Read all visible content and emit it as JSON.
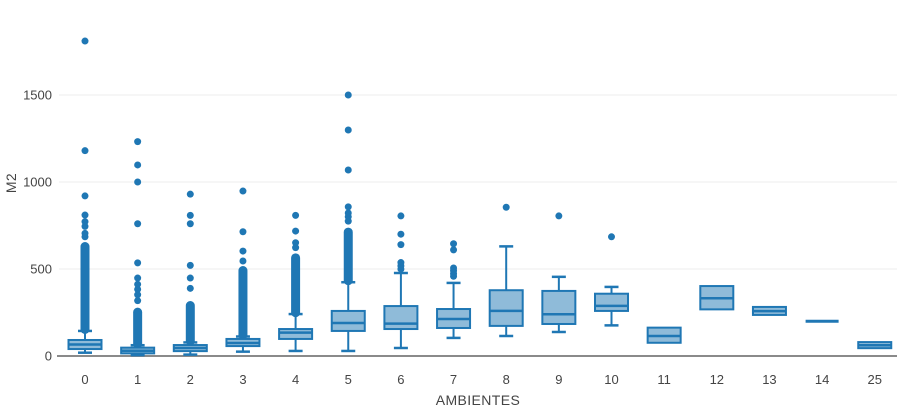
{
  "chart": {
    "xlabel": "AMBIENTES",
    "ylabel": "M2"
  },
  "chart_data": {
    "type": "box",
    "title": "",
    "xlabel": "AMBIENTES",
    "ylabel": "M2",
    "ylim": [
      0,
      1900
    ],
    "yticks": [
      0,
      500,
      1000,
      1500
    ],
    "grid": "horizontal",
    "legend": "none",
    "colors": {
      "box_line": "#1f77b4",
      "box_fill": "#8fbbd9",
      "outlier": "#1f77b4",
      "gridline": "#ececec",
      "axis_line": "#8a8a8a",
      "text": "#444444"
    },
    "categories": [
      "0",
      "1",
      "2",
      "3",
      "4",
      "5",
      "6",
      "7",
      "8",
      "9",
      "10",
      "11",
      "12",
      "13",
      "14",
      "25"
    ],
    "boxes": [
      {
        "label": "0",
        "q1": 40,
        "median": 66,
        "q3": 92,
        "lo": 19,
        "hi": 144,
        "column": [
          150,
          655
        ],
        "outliers": [
          685,
          705,
          745,
          772,
          810,
          920,
          1180,
          1810
        ]
      },
      {
        "label": "1",
        "q1": 15,
        "median": 30,
        "q3": 48,
        "lo": 5,
        "hi": 62,
        "column": [
          65,
          278
        ],
        "outliers": [
          318,
          352,
          383,
          412,
          448,
          535,
          760,
          1000,
          1098,
          1232
        ]
      },
      {
        "label": "2",
        "q1": 28,
        "median": 46,
        "q3": 63,
        "lo": 8,
        "hi": 78,
        "column": [
          82,
          316
        ],
        "outliers": [
          389,
          448,
          521,
          760,
          808,
          930
        ]
      },
      {
        "label": "3",
        "q1": 57,
        "median": 75,
        "q3": 98,
        "lo": 25,
        "hi": 112,
        "column": [
          116,
          517
        ],
        "outliers": [
          546,
          603,
          714,
          948
        ]
      },
      {
        "label": "4",
        "q1": 98,
        "median": 134,
        "q3": 155,
        "lo": 29,
        "hi": 241,
        "column": [
          246,
          590
        ],
        "outliers": [
          623,
          651,
          718,
          808
        ]
      },
      {
        "label": "5",
        "q1": 144,
        "median": 190,
        "q3": 259,
        "lo": 29,
        "hi": 424,
        "column": [
          430,
          738
        ],
        "outliers": [
          775,
          800,
          822,
          857,
          1069,
          1299,
          1500
        ]
      },
      {
        "label": "6",
        "q1": 155,
        "median": 186,
        "q3": 287,
        "lo": 46,
        "hi": 477,
        "column": null,
        "outliers": [
          500,
          518,
          537,
          640,
          700,
          805
        ]
      },
      {
        "label": "7",
        "q1": 161,
        "median": 213,
        "q3": 270,
        "lo": 104,
        "hi": 420,
        "column": null,
        "outliers": [
          458,
          473,
          490,
          506,
          610,
          645
        ]
      },
      {
        "label": "8",
        "q1": 173,
        "median": 259,
        "q3": 378,
        "lo": 115,
        "hi": 630,
        "column": null,
        "outliers": [
          855
        ]
      },
      {
        "label": "9",
        "q1": 184,
        "median": 240,
        "q3": 374,
        "lo": 138,
        "hi": 455,
        "column": null,
        "outliers": [
          805
        ]
      },
      {
        "label": "10",
        "q1": 259,
        "median": 288,
        "q3": 358,
        "lo": 176,
        "hi": 397,
        "column": null,
        "outliers": [
          685
        ]
      },
      {
        "label": "11",
        "q1": 76,
        "median": 115,
        "q3": 163,
        "lo": 76,
        "hi": 163,
        "column": null,
        "outliers": []
      },
      {
        "label": "12",
        "q1": 268,
        "median": 332,
        "q3": 402,
        "lo": 268,
        "hi": 402,
        "column": null,
        "outliers": []
      },
      {
        "label": "13",
        "q1": 236,
        "median": 258,
        "q3": 282,
        "lo": 236,
        "hi": 282,
        "column": null,
        "outliers": []
      },
      {
        "label": "14",
        "q1": 200,
        "median": 200,
        "q3": 200,
        "lo": 200,
        "hi": 200,
        "column": null,
        "outliers": []
      },
      {
        "label": "25",
        "q1": 45,
        "median": 62,
        "q3": 80,
        "lo": 45,
        "hi": 80,
        "column": null,
        "outliers": []
      }
    ]
  }
}
